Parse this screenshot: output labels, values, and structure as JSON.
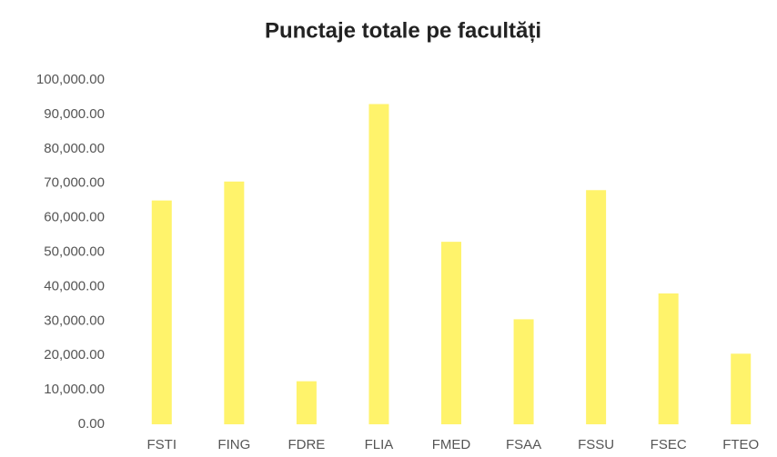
{
  "chart_data": {
    "type": "bar",
    "title": "Punctaje totale pe facultăți",
    "categories": [
      "FSTI",
      "FING",
      "FDRE",
      "FLIA",
      "FMED",
      "FSAA",
      "FSSU",
      "FSEC",
      "FTEO"
    ],
    "values": [
      65000,
      70500,
      12500,
      93000,
      53000,
      30500,
      68000,
      38000,
      20500
    ],
    "color": "#fff36b",
    "ylim": [
      0,
      100000
    ],
    "yticks": [
      {
        "value": 0,
        "label": "0.00"
      },
      {
        "value": 10000,
        "label": "10,000.00"
      },
      {
        "value": 20000,
        "label": "20,000.00"
      },
      {
        "value": 30000,
        "label": "30,000.00"
      },
      {
        "value": 40000,
        "label": "40,000.00"
      },
      {
        "value": 50000,
        "label": "50,000.00"
      },
      {
        "value": 60000,
        "label": "60,000.00"
      },
      {
        "value": 70000,
        "label": "70,000.00"
      },
      {
        "value": 80000,
        "label": "80,000.00"
      },
      {
        "value": 90000,
        "label": "90,000.00"
      },
      {
        "value": 100000,
        "label": "100,000.00"
      }
    ],
    "grid": false
  }
}
